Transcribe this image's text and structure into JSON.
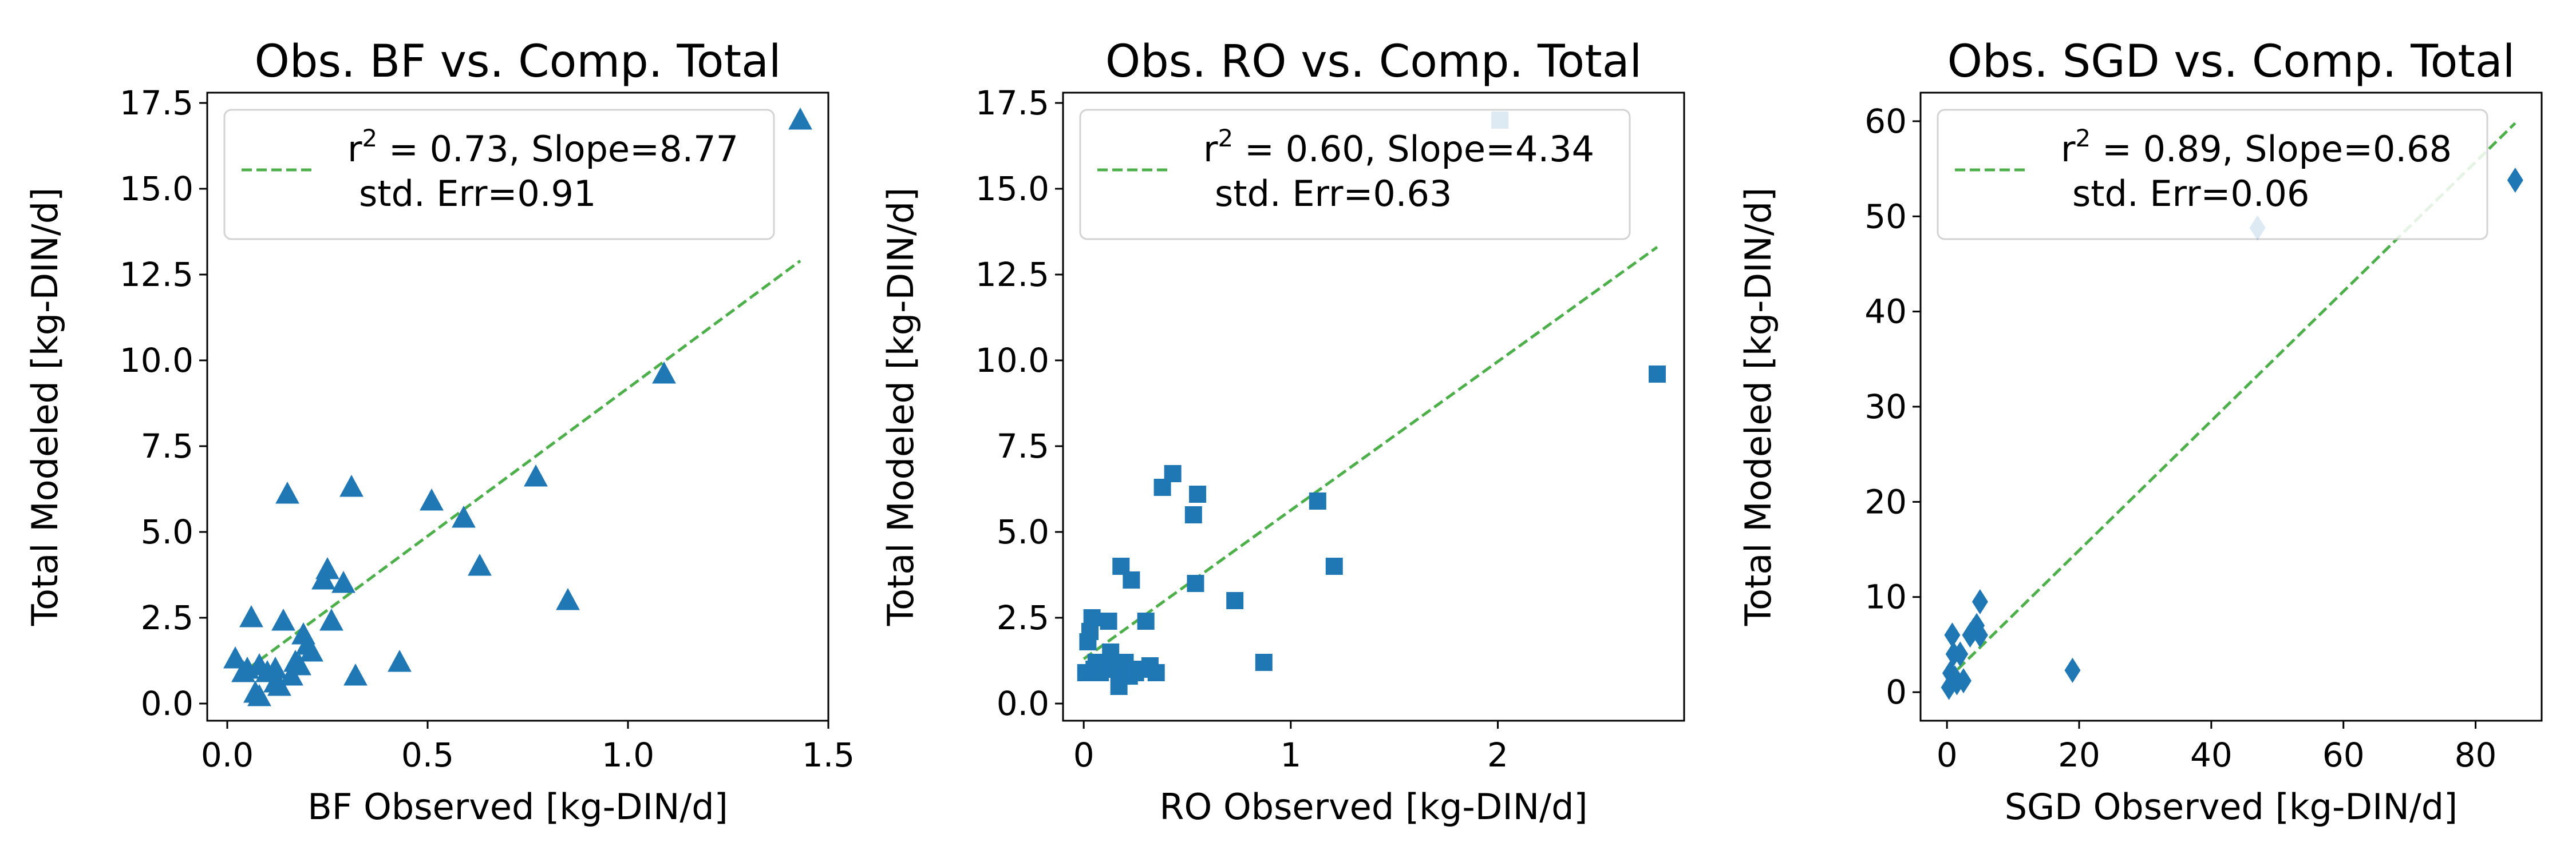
{
  "colors": {
    "marker": "#1f77b4",
    "fit_line": "#4daf4a"
  },
  "chart_data": [
    {
      "type": "scatter",
      "marker": "triangle",
      "title": "Obs. BF vs. Comp. Total",
      "xlabel": "BF Observed [kg-DIN/d]",
      "ylabel": "Total Modeled  [kg-DIN/d]",
      "xlim": [
        -0.05,
        1.5
      ],
      "ylim": [
        -0.5,
        17.8
      ],
      "xticks": [
        0.0,
        0.5,
        1.0,
        1.5
      ],
      "xtick_labels": [
        "0.0",
        "0.5",
        "1.0",
        "1.5"
      ],
      "yticks": [
        0.0,
        2.5,
        5.0,
        7.5,
        10.0,
        12.5,
        15.0,
        17.5
      ],
      "ytick_labels": [
        "0.0",
        "2.5",
        "5.0",
        "7.5",
        "10.0",
        "12.5",
        "15.0",
        "17.5"
      ],
      "legend": {
        "position": "top",
        "line1_rest": " = 0.73, Slope=8.77",
        "line2": "std. Err=0.91"
      },
      "fit": {
        "x": [
          0.02,
          1.43
        ],
        "y": [
          0.74,
          12.9
        ]
      },
      "points": [
        [
          0.02,
          1.3
        ],
        [
          0.04,
          0.9
        ],
        [
          0.05,
          1.0
        ],
        [
          0.06,
          2.5
        ],
        [
          0.07,
          0.3
        ],
        [
          0.08,
          0.2
        ],
        [
          0.08,
          1.1
        ],
        [
          0.1,
          0.9
        ],
        [
          0.12,
          1.0
        ],
        [
          0.12,
          0.6
        ],
        [
          0.13,
          0.5
        ],
        [
          0.14,
          2.4
        ],
        [
          0.15,
          6.1
        ],
        [
          0.16,
          0.8
        ],
        [
          0.17,
          1.2
        ],
        [
          0.18,
          1.1
        ],
        [
          0.19,
          2.0
        ],
        [
          0.2,
          1.7
        ],
        [
          0.21,
          1.5
        ],
        [
          0.24,
          3.6
        ],
        [
          0.25,
          3.9
        ],
        [
          0.26,
          2.4
        ],
        [
          0.29,
          3.5
        ],
        [
          0.31,
          6.3
        ],
        [
          0.32,
          0.8
        ],
        [
          0.43,
          1.2
        ],
        [
          0.51,
          5.9
        ],
        [
          0.59,
          5.4
        ],
        [
          0.63,
          4.0
        ],
        [
          0.77,
          6.6
        ],
        [
          0.85,
          3.0
        ],
        [
          1.09,
          9.6
        ],
        [
          1.43,
          17.0
        ]
      ]
    },
    {
      "type": "scatter",
      "marker": "square",
      "title": "Obs. RO vs. Comp. Total",
      "xlabel": "RO Observed [kg-DIN/d]",
      "ylabel": "Total Modeled  [kg-DIN/d]",
      "xlim": [
        -0.1,
        2.9
      ],
      "ylim": [
        -0.5,
        17.8
      ],
      "xticks": [
        0,
        1,
        2
      ],
      "xtick_labels": [
        "0",
        "1",
        "2"
      ],
      "yticks": [
        0.0,
        2.5,
        5.0,
        7.5,
        10.0,
        12.5,
        15.0,
        17.5
      ],
      "ytick_labels": [
        "0.0",
        "2.5",
        "5.0",
        "7.5",
        "10.0",
        "12.5",
        "15.0",
        "17.5"
      ],
      "legend": {
        "position": "top",
        "line1_rest": " = 0.60, Slope=4.34",
        "line2": "std. Err=0.63"
      },
      "fit": {
        "x": [
          0.0,
          2.77
        ],
        "y": [
          1.3,
          13.3
        ]
      },
      "points": [
        [
          0.01,
          0.9
        ],
        [
          0.02,
          1.8
        ],
        [
          0.03,
          2.1
        ],
        [
          0.04,
          2.5
        ],
        [
          0.05,
          1.0
        ],
        [
          0.06,
          1.2
        ],
        [
          0.08,
          0.9
        ],
        [
          0.1,
          1.1
        ],
        [
          0.12,
          2.4
        ],
        [
          0.13,
          1.5
        ],
        [
          0.15,
          1.0
        ],
        [
          0.17,
          0.5
        ],
        [
          0.18,
          4.0
        ],
        [
          0.2,
          1.2
        ],
        [
          0.22,
          0.8
        ],
        [
          0.23,
          3.6
        ],
        [
          0.25,
          0.9
        ],
        [
          0.27,
          1.0
        ],
        [
          0.3,
          2.4
        ],
        [
          0.32,
          1.1
        ],
        [
          0.35,
          0.9
        ],
        [
          0.38,
          6.3
        ],
        [
          0.43,
          6.7
        ],
        [
          0.53,
          5.5
        ],
        [
          0.54,
          3.5
        ],
        [
          0.55,
          6.1
        ],
        [
          0.73,
          3.0
        ],
        [
          0.87,
          1.2
        ],
        [
          1.13,
          5.9
        ],
        [
          1.21,
          4.0
        ],
        [
          2.01,
          17.0
        ],
        [
          2.77,
          9.6
        ]
      ]
    },
    {
      "type": "scatter",
      "marker": "diamond",
      "title": "Obs. SGD vs. Comp. Total",
      "xlabel": "SGD Observed [kg-DIN/d]",
      "ylabel": "Total Modeled  [kg-DIN/d]",
      "xlim": [
        -4,
        90
      ],
      "ylim": [
        -3,
        63
      ],
      "xticks": [
        0,
        20,
        40,
        60,
        80
      ],
      "xtick_labels": [
        "0",
        "20",
        "40",
        "60",
        "80"
      ],
      "yticks": [
        0,
        10,
        20,
        30,
        40,
        50,
        60
      ],
      "ytick_labels": [
        "0",
        "10",
        "20",
        "30",
        "40",
        "50",
        "60"
      ],
      "legend": {
        "position": "top",
        "line1_rest": " = 0.89, Slope=0.68",
        "line2": "std. Err=0.06"
      },
      "fit": {
        "x": [
          0.0,
          86.0
        ],
        "y": [
          1.3,
          59.8
        ]
      },
      "points": [
        [
          0.3,
          0.5
        ],
        [
          0.5,
          2.0
        ],
        [
          0.8,
          6.0
        ],
        [
          1.0,
          4.0
        ],
        [
          1.2,
          1.5
        ],
        [
          1.5,
          1.0
        ],
        [
          2.0,
          4.0
        ],
        [
          2.5,
          1.2
        ],
        [
          3.5,
          6.0
        ],
        [
          4.0,
          6.5
        ],
        [
          4.5,
          7.0
        ],
        [
          5.0,
          6.0
        ],
        [
          5.0,
          9.5
        ],
        [
          19.0,
          2.3
        ],
        [
          47.0,
          48.8
        ],
        [
          86.0,
          53.8
        ]
      ]
    }
  ]
}
